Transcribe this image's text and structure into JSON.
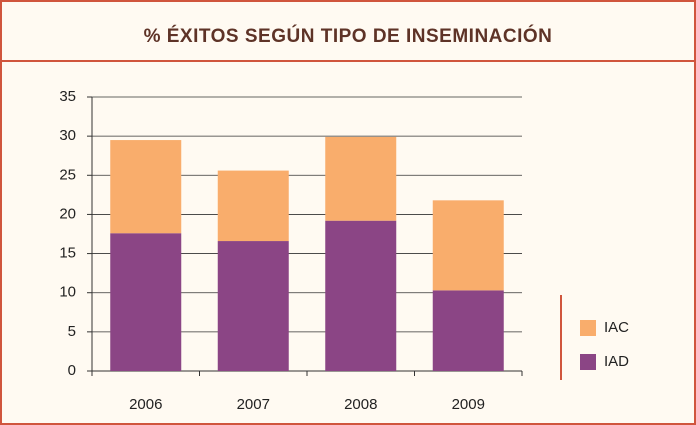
{
  "chart_data": {
    "type": "stacked_bar",
    "title": "% ÉXITOS SEGÚN TIPO DE INSEMINACIÓN",
    "categories": [
      "2006",
      "2007",
      "2008",
      "2009"
    ],
    "series": [
      {
        "name": "IAD",
        "color": "#8b4585",
        "values": [
          17.6,
          16.6,
          19.2,
          10.3
        ]
      },
      {
        "name": "IAC",
        "color": "#f9ad6c",
        "values": [
          11.9,
          9.0,
          10.7,
          11.5
        ]
      }
    ],
    "ylim": [
      0,
      35
    ],
    "yticks": [
      0,
      5,
      10,
      15,
      20,
      25,
      30,
      35
    ],
    "grid": true,
    "legend": "right"
  }
}
